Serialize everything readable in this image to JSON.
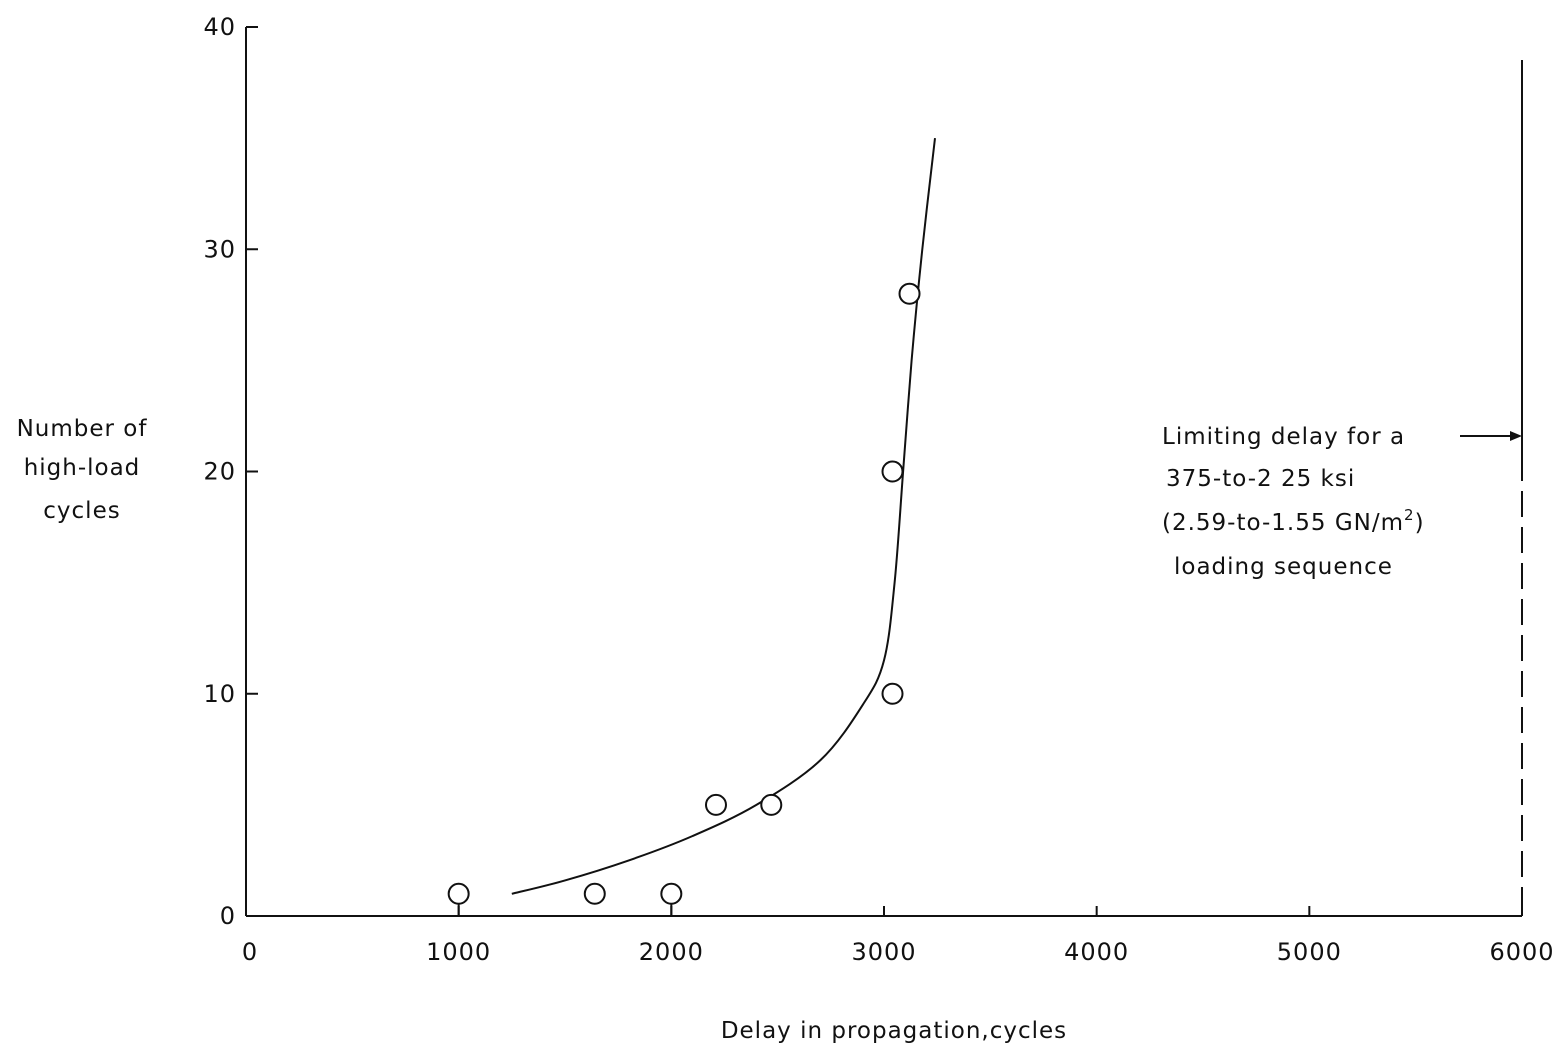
{
  "chart_data": {
    "type": "scatter",
    "xlabel": "Delay in propagation,cycles",
    "ylabel_lines": [
      "Number of",
      "high-load",
      "cycles"
    ],
    "xlim": [
      0,
      6000
    ],
    "ylim": [
      0,
      40
    ],
    "x_ticks": [
      "0",
      "1000",
      "2000",
      "3000",
      "4000",
      "5000",
      "6000"
    ],
    "y_ticks": [
      "0",
      "10",
      "20",
      "30",
      "40"
    ],
    "grid": false,
    "points": [
      {
        "x": 1000,
        "y": 1
      },
      {
        "x": 1640,
        "y": 1
      },
      {
        "x": 2000,
        "y": 1
      },
      {
        "x": 2210,
        "y": 5
      },
      {
        "x": 2470,
        "y": 5
      },
      {
        "x": 3040,
        "y": 10
      },
      {
        "x": 3040,
        "y": 20
      },
      {
        "x": 3120,
        "y": 28
      }
    ],
    "points_with_stems": [
      1000,
      2000
    ],
    "fit_curve": [
      {
        "x": 1250,
        "y": 1
      },
      {
        "x": 1500,
        "y": 1.6
      },
      {
        "x": 1800,
        "y": 2.5
      },
      {
        "x": 2100,
        "y": 3.6
      },
      {
        "x": 2400,
        "y": 5.0
      },
      {
        "x": 2700,
        "y": 7.0
      },
      {
        "x": 2900,
        "y": 9.5
      },
      {
        "x": 3000,
        "y": 11.5
      },
      {
        "x": 3050,
        "y": 15
      },
      {
        "x": 3090,
        "y": 20
      },
      {
        "x": 3130,
        "y": 25
      },
      {
        "x": 3180,
        "y": 30
      },
      {
        "x": 3240,
        "y": 35
      }
    ],
    "limit_line": {
      "x": 6000
    },
    "annotation": {
      "lines": [
        "Limiting delay for a",
        "375-to-2 25 ksi",
        "(2.59-to-1.55 GN/m",
        "loading sequence"
      ],
      "superscript": "2",
      "closing": ")"
    },
    "colors": {
      "ink": "#111111",
      "background": "#ffffff"
    }
  }
}
